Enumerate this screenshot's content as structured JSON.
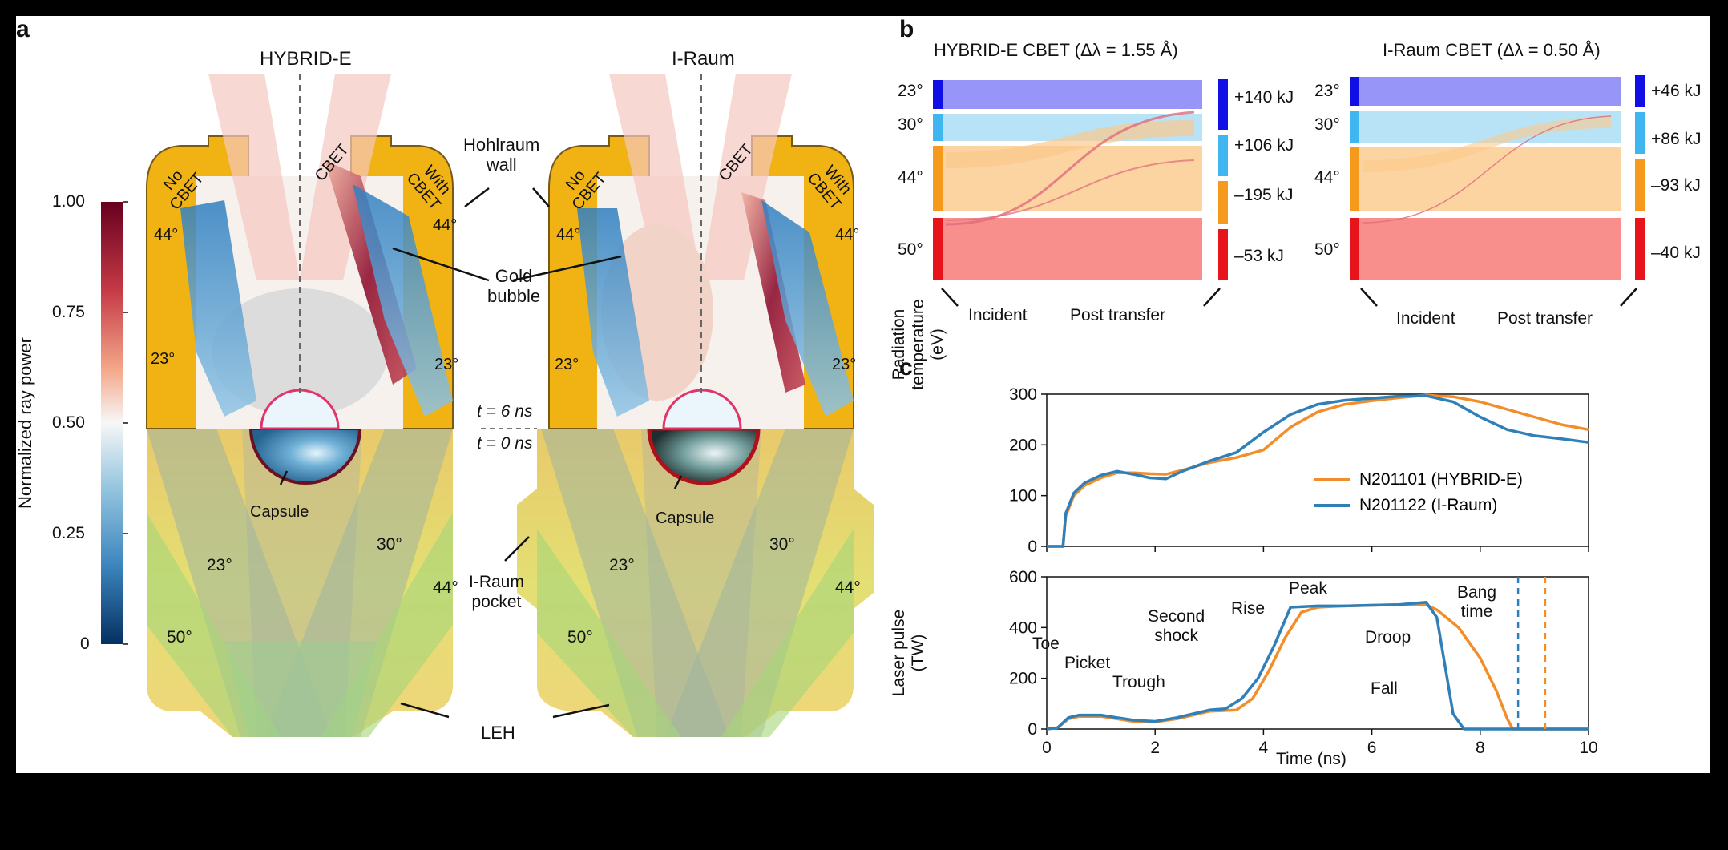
{
  "panel_letters": {
    "a": "a",
    "b": "b",
    "c": "c"
  },
  "panel_a": {
    "title_left": "HYBRID-E",
    "title_right": "I-Raum",
    "colorbar": {
      "label": "Normalized ray power",
      "ticks": [
        "1.00",
        "0.75",
        "0.50",
        "0.25",
        "0"
      ]
    },
    "left": {
      "no_cbet": [
        "No",
        "CBET"
      ],
      "with_cbet": [
        "With",
        "CBET"
      ],
      "cbet": "CBET",
      "angle_44_left": "44°",
      "angle_44_right": "44°",
      "angle_23_left": "23°",
      "angle_23_right": "23°",
      "capsule": "Capsule",
      "beam_23": "23°",
      "beam_30": "30°",
      "beam_44": "44°",
      "beam_50": "50°"
    },
    "right": {
      "no_cbet": [
        "No",
        "CBET"
      ],
      "with_cbet": [
        "With",
        "CBET"
      ],
      "cbet": "CBET",
      "angle_44_left": "44°",
      "angle_44_right": "44°",
      "angle_23_left": "23°",
      "angle_23_right": "23°",
      "capsule": "Capsule",
      "beam_23": "23°",
      "beam_30": "30°",
      "beam_44": "44°",
      "beam_50": "50°"
    },
    "hohlraum_wall": [
      "Hohlraum",
      "wall"
    ],
    "gold_bubble": [
      "Gold",
      "bubble"
    ],
    "t6": "t = 6 ns",
    "t0": "t = 0 ns",
    "iraum_pocket": [
      "I-Raum",
      "pocket"
    ],
    "leh": "LEH"
  },
  "panel_b": [
    {
      "title": "HYBRID-E CBET (Δλ = 1.55 Å)",
      "angles": [
        "23°",
        "30°",
        "44°",
        "50°"
      ],
      "transfers": [
        "+140 kJ",
        "+106 kJ",
        "–195 kJ",
        "–53 kJ"
      ],
      "incident": "Incident",
      "post": "Post transfer"
    },
    {
      "title": "I-Raum CBET (Δλ = 0.50 Å)",
      "angles": [
        "23°",
        "30°",
        "44°",
        "50°"
      ],
      "transfers": [
        "+46 kJ",
        "+86 kJ",
        "–93 kJ",
        "–40 kJ"
      ],
      "incident": "Incident",
      "post": "Post transfer"
    }
  ],
  "colors": {
    "b23": "#7d7cf6",
    "b30": "#a6dcf5",
    "b44": "#fbc98b",
    "b50": "#f77b78",
    "b23_bar": "#1010e6",
    "b30_bar": "#3fb6f0",
    "b44_bar": "#f59a1d",
    "b50_bar": "#e8141b",
    "hybrid": "#f28d2a",
    "iraum": "#2f7fb8",
    "gold": "#f0b313"
  },
  "chart_data": [
    {
      "type": "line",
      "ylabel": "Radiation temperature (eV)",
      "xlim": [
        0,
        10
      ],
      "ylim": [
        0,
        300
      ],
      "yticks": [
        0,
        100,
        200,
        300
      ],
      "series": [
        {
          "name": "N201101 (HYBRID-E)",
          "x": [
            0,
            0.3,
            0.35,
            0.5,
            0.7,
            1,
            1.3,
            1.6,
            1.9,
            2.2,
            2.5,
            3,
            3.5,
            4,
            4.5,
            5,
            5.5,
            6,
            6.5,
            7,
            7.5,
            8,
            8.5,
            9,
            9.5,
            10
          ],
          "y": [
            0,
            0,
            60,
            100,
            120,
            135,
            145,
            145,
            143,
            142,
            150,
            165,
            175,
            190,
            235,
            265,
            280,
            287,
            293,
            298,
            295,
            285,
            270,
            255,
            240,
            230
          ]
        },
        {
          "name": "N201122 (I-Raum)",
          "x": [
            0,
            0.3,
            0.35,
            0.5,
            0.7,
            1,
            1.3,
            1.6,
            1.9,
            2.2,
            2.5,
            3,
            3.5,
            4,
            4.5,
            5,
            5.5,
            6,
            6.5,
            7,
            7.5,
            8,
            8.5,
            9,
            9.5,
            10
          ],
          "y": [
            0,
            0,
            65,
            105,
            125,
            140,
            148,
            142,
            135,
            133,
            148,
            168,
            185,
            225,
            260,
            280,
            288,
            292,
            296,
            297,
            285,
            255,
            230,
            218,
            212,
            205
          ]
        }
      ]
    },
    {
      "type": "line",
      "ylabel": "Laser pulse (TW)",
      "xlabel": "Time (ns)",
      "xlim": [
        0,
        10
      ],
      "ylim": [
        0,
        600
      ],
      "yticks": [
        0,
        200,
        400,
        600
      ],
      "xticks": [
        0,
        2,
        4,
        6,
        8,
        10
      ],
      "series": [
        {
          "name": "N201101 (HYBRID-E)",
          "x": [
            0,
            0.2,
            0.4,
            0.6,
            1,
            1.3,
            1.6,
            2,
            2.4,
            2.8,
            3,
            3.5,
            3.8,
            4.1,
            4.4,
            4.7,
            5,
            5.5,
            6,
            6.5,
            7,
            7.2,
            7.6,
            8,
            8.3,
            8.5,
            8.6,
            10
          ],
          "y": [
            0,
            5,
            40,
            50,
            50,
            40,
            30,
            28,
            40,
            60,
            70,
            75,
            120,
            230,
            360,
            460,
            480,
            485,
            488,
            490,
            490,
            470,
            400,
            280,
            150,
            40,
            0,
            0
          ]
        },
        {
          "name": "N201122 (I-Raum)",
          "x": [
            0,
            0.2,
            0.4,
            0.6,
            1,
            1.3,
            1.6,
            2,
            2.4,
            2.8,
            3,
            3.3,
            3.6,
            3.9,
            4.2,
            4.5,
            5,
            5.5,
            6,
            6.5,
            7,
            7.2,
            7.35,
            7.5,
            7.7,
            10
          ],
          "y": [
            0,
            5,
            45,
            55,
            55,
            45,
            35,
            30,
            45,
            65,
            75,
            80,
            120,
            200,
            330,
            480,
            485,
            485,
            488,
            490,
            500,
            440,
            250,
            60,
            0,
            0
          ]
        }
      ],
      "bang_time": {
        "hybrid_x": 9.2,
        "iraum_x": 8.7
      },
      "annotations": [
        "Toe",
        "Picket",
        "Trough",
        "Second",
        "shock",
        "Rise",
        "Peak",
        "Droop",
        "Fall",
        "Bang",
        "time"
      ]
    }
  ]
}
